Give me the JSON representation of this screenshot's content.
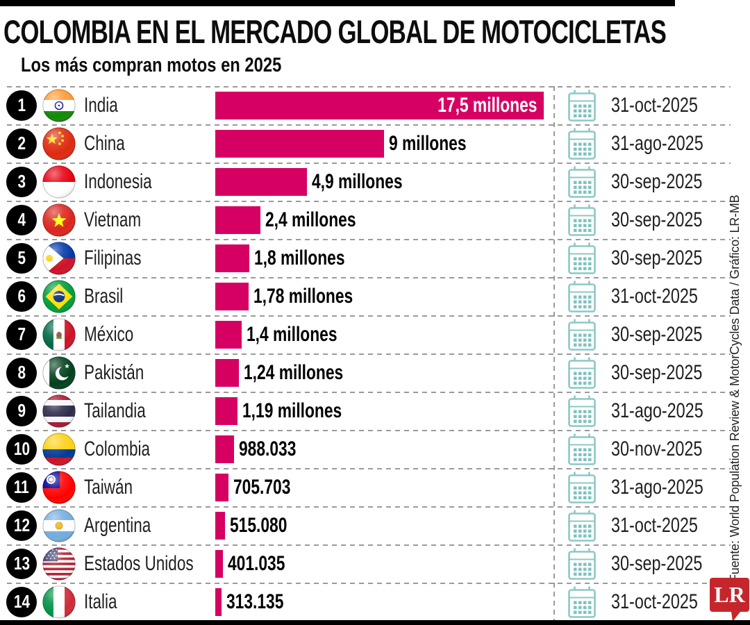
{
  "header": {
    "title": "COLOMBIA EN EL MERCADO GLOBAL DE MOTOCICLETAS",
    "subtitle": "Los más compran motos en 2025"
  },
  "chart_data": {
    "type": "bar",
    "orientation": "horizontal",
    "title": "COLOMBIA EN EL MERCADO GLOBAL DE MOTOCICLETAS",
    "subtitle": "Los más compran motos en 2025",
    "xlim": [
      0,
      17500000
    ],
    "bar_color": "#D60063",
    "ranks": [
      "1",
      "2",
      "3",
      "4",
      "5",
      "6",
      "7",
      "8",
      "9",
      "10",
      "11",
      "12",
      "13",
      "14"
    ],
    "categories": [
      "India",
      "China",
      "Indonesia",
      "Vietnam",
      "Filipinas",
      "Brasil",
      "México",
      "Pakistán",
      "Tailandia",
      "Colombia",
      "Taiwán",
      "Argentina",
      "Estados Unidos",
      "Italia"
    ],
    "values": [
      17500000,
      9000000,
      4900000,
      2400000,
      1800000,
      1780000,
      1400000,
      1240000,
      1190000,
      988033,
      705703,
      515080,
      401035,
      313135
    ],
    "value_labels": [
      "17,5 millones",
      "9 millones",
      "4,9 millones",
      "2,4 millones",
      "1,8 millones",
      "1,78 millones",
      "1,4 millones",
      "1,24 millones",
      "1,19 millones",
      "988.033",
      "705.703",
      "515.080",
      "401.035",
      "313.135"
    ],
    "dates": [
      "31-oct-2025",
      "31-ago-2025",
      "30-sep-2025",
      "30-sep-2025",
      "30-sep-2025",
      "31-oct-2025",
      "30-sep-2025",
      "30-sep-2025",
      "31-ago-2025",
      "30-nov-2025",
      "31-ago-2025",
      "31-oct-2025",
      "30-sep-2025",
      "31-oct-2025"
    ],
    "flags": [
      "india",
      "china",
      "indonesia",
      "vietnam",
      "filipinas",
      "brasil",
      "mexico",
      "pakistan",
      "tailandia",
      "colombia",
      "taiwan",
      "argentina",
      "usa",
      "italia"
    ]
  },
  "footer": {
    "source": "Fuente: World Population Review & MotorCycles Data / Gráfico: LR-MB",
    "logo_text": "LR"
  },
  "colors": {
    "bar": "#D60063",
    "calendar": "#8CC8C5",
    "calendar_dots": "#7FC3BF",
    "logo_red": "#C5262C",
    "rank_circle": "#000000"
  }
}
